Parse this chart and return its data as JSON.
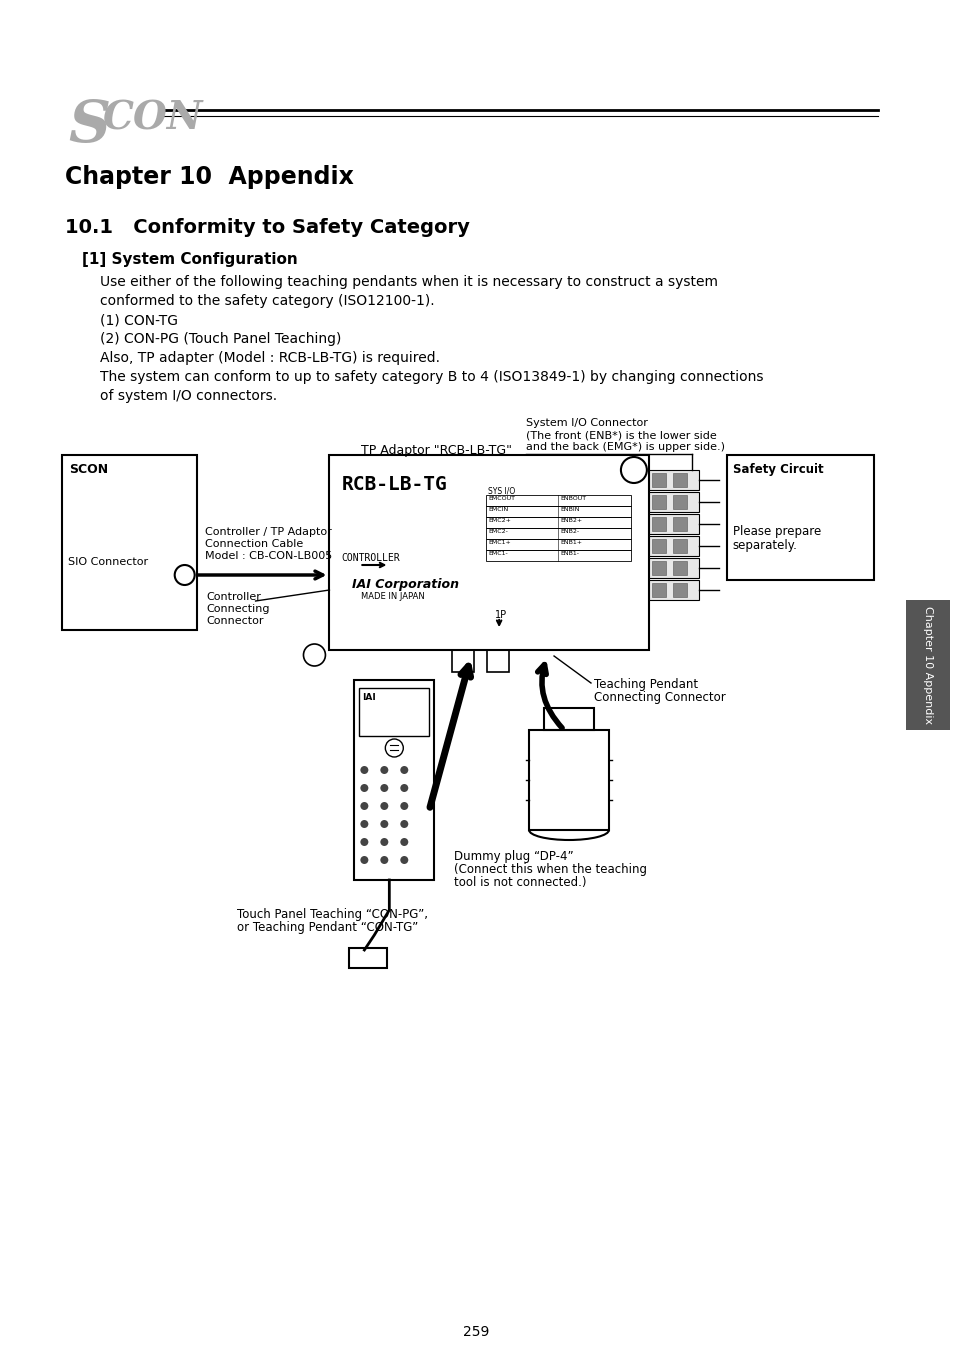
{
  "bg_color": "#ffffff",
  "page_number": "259",
  "chapter_title": "Chapter 10  Appendix",
  "section_title": "10.1   Conformity to Safety Category",
  "subsection": "[1] System Configuration",
  "body_lines": [
    "Use either of the following teaching pendants when it is necessary to construct a system",
    "conformed to the safety category (ISO12100-1).",
    "(1) CON-TG",
    "(2) CON-PG (Touch Panel Teaching)",
    "Also, TP adapter (Model : RCB-LB-TG) is required.",
    "The system can conform to up to safety category B to 4 (ISO13849-1) by changing connections",
    "of system I/O connectors."
  ],
  "body_indent": [
    0,
    0,
    1,
    1,
    1,
    1,
    1
  ],
  "sidebar_text": "Chapter 10 Appendix",
  "diagram_labels": {
    "scon_box": "SCON",
    "sio_connector": "SIO Connector",
    "cable_label1": "Controller / TP Adaptor",
    "cable_label2": "Connection Cable",
    "cable_label3": "Model : CB-CON-LB005",
    "controller_conn1": "Controller",
    "controller_conn2": "Connecting",
    "controller_conn3": "Connector",
    "tp_adaptor_label": "TP Adaptor \"RCB-LB-TG\"",
    "rcb_text": "RCB-LB-TG",
    "controller_text": "CONTROLLER",
    "iai_text": "IAI Corporation",
    "made_in_japan": "MADE IN JAPAN",
    "sys_io_label1": "System I/O Connector",
    "sys_io_label2": "(The front (ENB*) is the lower side",
    "sys_io_label3": "and the back (EMG*) is upper side.)",
    "safety_circuit": "Safety Circuit",
    "please_prepare": "Please prepare",
    "separately": "separately.",
    "teaching_pendant1": "Teaching Pendant",
    "teaching_pendant2": "Connecting Connector",
    "touch_panel1": "Touch Panel Teaching “CON-PG”,",
    "touch_panel2": "or Teaching Pendant “CON-TG”",
    "dummy_plug1": "Dummy plug “DP-4”",
    "dummy_plug2": "(Connect this when the teaching",
    "dummy_plug3": "tool is not connected.)",
    "sys_io_rows": [
      "EMCOUT|ENBOUT",
      "EMCIN |ENBIN",
      "EMC2+ |ENB2+",
      "EMC2- |ENB2-",
      "EMC1+ |ENB1+",
      "EMC1- |ENB1-"
    ],
    "1p_text": "1P"
  }
}
